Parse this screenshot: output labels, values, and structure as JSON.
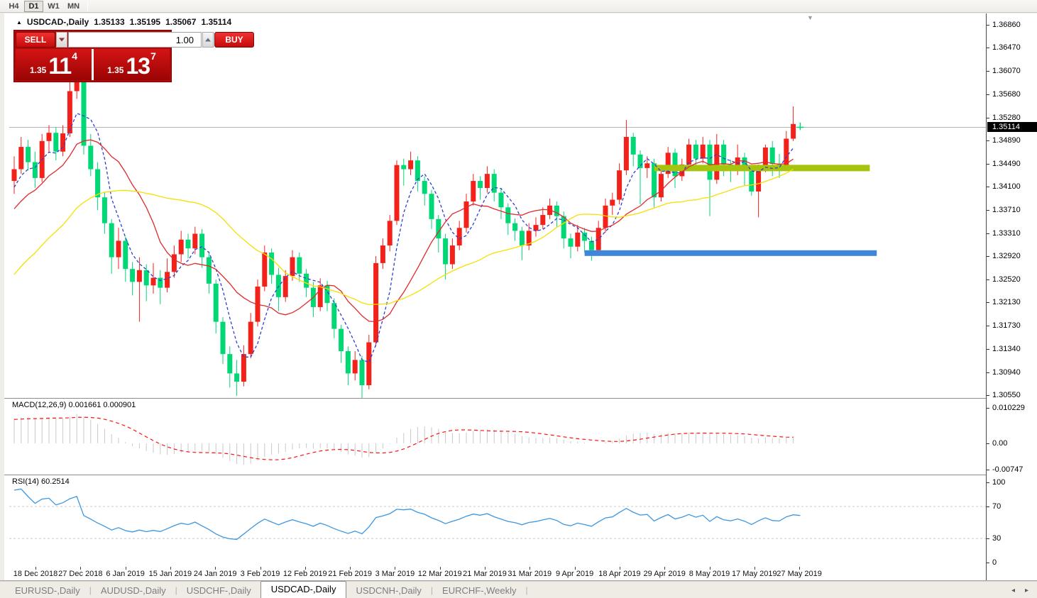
{
  "toolbar": {
    "timeframes": [
      "H4",
      "D1",
      "W1",
      "MN"
    ],
    "active": "D1"
  },
  "chart_title": {
    "symbol": "USDCAD-,Daily",
    "open": "1.35133",
    "high": "1.35195",
    "low": "1.35067",
    "close": "1.35114"
  },
  "trade_panel": {
    "sell_label": "SELL",
    "buy_label": "BUY",
    "volume": "1.00",
    "sell_price_small": "1.35",
    "sell_price_big": "11",
    "sell_price_sup": "4",
    "buy_price_small": "1.35",
    "buy_price_big": "13",
    "buy_price_sup": "7"
  },
  "labels": {
    "macd_full": "MACD(12,26,9) 0.001661 0.000901",
    "rsi_full": "RSI(14) 60.2514"
  },
  "tabs": {
    "items": [
      "EURUSD-,Daily",
      "AUDUSD-,Daily",
      "USDCHF-,Daily",
      "USDCAD-,Daily",
      "USDCNH-,Daily",
      "EURCHF-,Weekly"
    ],
    "active_index": 3
  },
  "colors": {
    "bull_candle": "#f2221b",
    "bear_candle": "#00d775",
    "ma_fast": "#2b3fd6",
    "ma_medium": "#e02a2a",
    "ma_slow": "#f5e000",
    "macd_histogram": "#c9c9c9",
    "macd_signal": "#ff1111",
    "rsi_line": "#3d97e0",
    "grid_dashed": "#c8c8c8",
    "ray_green": "#a6c40e",
    "ray_blue": "#3e86d9",
    "current_price_line": "#b4b4b4",
    "price_box_bg": "#000000"
  },
  "chart_data": {
    "type": "candlestick",
    "symbol": "USDCAD-",
    "timeframe": "Daily",
    "title": "USDCAD-,Daily",
    "ohlc_display": {
      "open": 1.35133,
      "high": 1.35195,
      "low": 1.35067,
      "close": 1.35114
    },
    "x_axis": {
      "labels": [
        "18 Dec 2018",
        "27 Dec 2018",
        "6 Jan 2019",
        "15 Jan 2019",
        "24 Jan 2019",
        "3 Feb 2019",
        "12 Feb 2019",
        "21 Feb 2019",
        "3 Mar 2019",
        "12 Mar 2019",
        "21 Mar 2019",
        "31 Mar 2019",
        "9 Apr 2019",
        "18 Apr 2019",
        "29 Apr 2019",
        "8 May 2019",
        "17 May 2019",
        "27 May 2019"
      ]
    },
    "y_axis": {
      "ticks": [
        "1.36860",
        "1.36470",
        "1.36070",
        "1.35680",
        "1.35280",
        "1.34890",
        "1.34490",
        "1.34100",
        "1.33710",
        "1.33310",
        "1.32920",
        "1.32520",
        "1.32130",
        "1.31730",
        "1.31340",
        "1.30940",
        "1.30550"
      ],
      "range": [
        1.3055,
        1.3686
      ],
      "current_price": 1.35114,
      "current_price_label": "1.35114"
    },
    "candles": [
      [
        1.342,
        1.3462,
        1.3398,
        1.344
      ],
      [
        1.344,
        1.3495,
        1.3432,
        1.3478
      ],
      [
        1.3478,
        1.349,
        1.3438,
        1.3452
      ],
      [
        1.3452,
        1.347,
        1.3408,
        1.3425
      ],
      [
        1.3425,
        1.35,
        1.3418,
        1.3488
      ],
      [
        1.3488,
        1.3515,
        1.347,
        1.3502
      ],
      [
        1.3502,
        1.3512,
        1.3455,
        1.347
      ],
      [
        1.347,
        1.3515,
        1.3462,
        1.3501
      ],
      [
        1.3501,
        1.3596,
        1.3495,
        1.3573
      ],
      [
        1.3573,
        1.3645,
        1.356,
        1.363
      ],
      [
        1.3625,
        1.3664,
        1.3465,
        1.348
      ],
      [
        1.348,
        1.35,
        1.3428,
        1.344
      ],
      [
        1.344,
        1.3452,
        1.337,
        1.3392
      ],
      [
        1.3392,
        1.34,
        1.333,
        1.3348
      ],
      [
        1.3348,
        1.3355,
        1.3262,
        1.329
      ],
      [
        1.329,
        1.334,
        1.327,
        1.3318
      ],
      [
        1.3318,
        1.3325,
        1.3248,
        1.327
      ],
      [
        1.327,
        1.3282,
        1.3225,
        1.3248
      ],
      [
        1.3248,
        1.329,
        1.318,
        1.3268
      ],
      [
        1.3268,
        1.3278,
        1.3215,
        1.3242
      ],
      [
        1.3242,
        1.328,
        1.3228,
        1.3255
      ],
      [
        1.3255,
        1.3268,
        1.321,
        1.3238
      ],
      [
        1.3238,
        1.3288,
        1.323,
        1.3265
      ],
      [
        1.3265,
        1.331,
        1.3255,
        1.3295
      ],
      [
        1.3295,
        1.3335,
        1.3282,
        1.332
      ],
      [
        1.332,
        1.333,
        1.3288,
        1.3305
      ],
      [
        1.3305,
        1.3342,
        1.3295,
        1.333
      ],
      [
        1.333,
        1.3338,
        1.3272,
        1.329
      ],
      [
        1.329,
        1.33,
        1.3228,
        1.3245
      ],
      [
        1.3245,
        1.3252,
        1.316,
        1.318
      ],
      [
        1.318,
        1.3188,
        1.3108,
        1.3125
      ],
      [
        1.3125,
        1.3138,
        1.3068,
        1.3092
      ],
      [
        1.3092,
        1.3115,
        1.3054,
        1.3078
      ],
      [
        1.3078,
        1.314,
        1.307,
        1.3125
      ],
      [
        1.3125,
        1.3195,
        1.3118,
        1.318
      ],
      [
        1.318,
        1.3252,
        1.3172,
        1.324
      ],
      [
        1.324,
        1.331,
        1.3232,
        1.3298
      ],
      [
        1.3298,
        1.3305,
        1.3245,
        1.326
      ],
      [
        1.326,
        1.3272,
        1.3198,
        1.3222
      ],
      [
        1.3222,
        1.3268,
        1.3214,
        1.3258
      ],
      [
        1.3258,
        1.3302,
        1.325,
        1.329
      ],
      [
        1.329,
        1.3298,
        1.3248,
        1.3262
      ],
      [
        1.3262,
        1.327,
        1.3222,
        1.3238
      ],
      [
        1.3238,
        1.3248,
        1.3188,
        1.3205
      ],
      [
        1.3205,
        1.3254,
        1.3198,
        1.3242
      ],
      [
        1.3242,
        1.325,
        1.3198,
        1.3212
      ],
      [
        1.3212,
        1.322,
        1.3152,
        1.3168
      ],
      [
        1.3168,
        1.3175,
        1.311,
        1.313
      ],
      [
        1.313,
        1.3138,
        1.3072,
        1.3092
      ],
      [
        1.3092,
        1.313,
        1.308,
        1.3115
      ],
      [
        1.3115,
        1.3122,
        1.305,
        1.3072
      ],
      [
        1.3072,
        1.3158,
        1.3065,
        1.3145
      ],
      [
        1.3145,
        1.3292,
        1.3138,
        1.328
      ],
      [
        1.328,
        1.3322,
        1.327,
        1.331
      ],
      [
        1.331,
        1.3362,
        1.33,
        1.3352
      ],
      [
        1.3352,
        1.3455,
        1.3345,
        1.3447
      ],
      [
        1.3447,
        1.3458,
        1.3412,
        1.344
      ],
      [
        1.344,
        1.347,
        1.343,
        1.3455
      ],
      [
        1.3455,
        1.3462,
        1.3402,
        1.342
      ],
      [
        1.342,
        1.3428,
        1.3378,
        1.3398
      ],
      [
        1.3398,
        1.3405,
        1.3338,
        1.3355
      ],
      [
        1.3355,
        1.3362,
        1.3298,
        1.3322
      ],
      [
        1.3322,
        1.333,
        1.3252,
        1.3278
      ],
      [
        1.3278,
        1.3322,
        1.327,
        1.331
      ],
      [
        1.331,
        1.3352,
        1.3302,
        1.334
      ],
      [
        1.334,
        1.3398,
        1.3332,
        1.3385
      ],
      [
        1.3385,
        1.3432,
        1.3378,
        1.342
      ],
      [
        1.342,
        1.3428,
        1.3388,
        1.3408
      ],
      [
        1.3408,
        1.3445,
        1.34,
        1.3432
      ],
      [
        1.3432,
        1.344,
        1.3385,
        1.34
      ],
      [
        1.34,
        1.3408,
        1.3355,
        1.3375
      ],
      [
        1.3375,
        1.3382,
        1.3328,
        1.3348
      ],
      [
        1.3348,
        1.3356,
        1.3318,
        1.3335
      ],
      [
        1.3335,
        1.3342,
        1.3285,
        1.331
      ],
      [
        1.331,
        1.3348,
        1.3302,
        1.3335
      ],
      [
        1.3335,
        1.3358,
        1.3325,
        1.3345
      ],
      [
        1.3345,
        1.3375,
        1.3338,
        1.3362
      ],
      [
        1.3362,
        1.339,
        1.3355,
        1.3378
      ],
      [
        1.3378,
        1.3385,
        1.3342,
        1.336
      ],
      [
        1.336,
        1.3368,
        1.3305,
        1.3322
      ],
      [
        1.3322,
        1.333,
        1.3288,
        1.3308
      ],
      [
        1.3308,
        1.3345,
        1.33,
        1.3332
      ],
      [
        1.3332,
        1.334,
        1.3298,
        1.3318
      ],
      [
        1.3318,
        1.3325,
        1.3284,
        1.3302
      ],
      [
        1.3302,
        1.3352,
        1.3295,
        1.334
      ],
      [
        1.334,
        1.339,
        1.3332,
        1.3378
      ],
      [
        1.3378,
        1.34,
        1.3362,
        1.3388
      ],
      [
        1.3388,
        1.345,
        1.338,
        1.3438
      ],
      [
        1.3438,
        1.3524,
        1.343,
        1.3495
      ],
      [
        1.3495,
        1.3502,
        1.3445,
        1.3465
      ],
      [
        1.3465,
        1.3472,
        1.338,
        1.3442
      ],
      [
        1.3442,
        1.3462,
        1.3425,
        1.345
      ],
      [
        1.345,
        1.3458,
        1.3375,
        1.3392
      ],
      [
        1.3392,
        1.3442,
        1.3385,
        1.3432
      ],
      [
        1.3432,
        1.3478,
        1.3425,
        1.3468
      ],
      [
        1.3468,
        1.3475,
        1.3408,
        1.3428
      ],
      [
        1.3428,
        1.3458,
        1.342,
        1.3448
      ],
      [
        1.3448,
        1.3492,
        1.344,
        1.3482
      ],
      [
        1.3482,
        1.349,
        1.3438,
        1.3458
      ],
      [
        1.3458,
        1.3495,
        1.345,
        1.3482
      ],
      [
        1.3482,
        1.349,
        1.336,
        1.3422
      ],
      [
        1.3422,
        1.35,
        1.3415,
        1.3482
      ],
      [
        1.3482,
        1.349,
        1.3428,
        1.3448
      ],
      [
        1.3448,
        1.3456,
        1.3418,
        1.3438
      ],
      [
        1.3438,
        1.3482,
        1.343,
        1.346
      ],
      [
        1.346,
        1.3468,
        1.3412,
        1.3437
      ],
      [
        1.3437,
        1.3444,
        1.3395,
        1.3402
      ],
      [
        1.3402,
        1.3448,
        1.3358,
        1.3441
      ],
      [
        1.3441,
        1.3482,
        1.3435,
        1.3477
      ],
      [
        1.3477,
        1.3488,
        1.3428,
        1.3449
      ],
      [
        1.3449,
        1.3466,
        1.3425,
        1.3445
      ],
      [
        1.3445,
        1.3505,
        1.344,
        1.3492
      ],
      [
        1.3492,
        1.3547,
        1.3488,
        1.3517
      ]
    ],
    "forming_candle": [
      1.35133,
      1.35195,
      1.35067,
      1.35114
    ],
    "indicator_warmup_closes": [
      1.305,
      1.3068,
      1.3085,
      1.3105,
      1.3098,
      1.3122,
      1.3148,
      1.316,
      1.3155,
      1.3178,
      1.3198,
      1.3215,
      1.3208,
      1.3232,
      1.3255,
      1.327,
      1.3262,
      1.3288,
      1.3305,
      1.3322,
      1.3315,
      1.3338,
      1.3352,
      1.3345,
      1.3368,
      1.3385,
      1.3378,
      1.3398,
      1.341,
      1.342
    ],
    "overlays": {
      "moving_averages": [
        {
          "name": "ma-fast-blue",
          "period": 5,
          "color": "#2b3fd6",
          "dashed": true
        },
        {
          "name": "ma-medium-red",
          "period": 12,
          "color": "#e02a2a",
          "dashed": false
        },
        {
          "name": "ma-slow-yellow",
          "period": 30,
          "color": "#f5e000",
          "dashed": false
        }
      ],
      "horizontal_rays": [
        {
          "name": "resistance-ray-green",
          "color": "#a6c40e",
          "price": 1.3442,
          "from_bar": 92,
          "to_bar": 123,
          "thickness": 9
        },
        {
          "name": "support-ray-blue",
          "color": "#3e86d9",
          "price": 1.3297,
          "from_bar": 82,
          "to_bar": 124,
          "thickness": 8
        }
      ]
    },
    "macd_pane": {
      "label": "MACD(12,26,9)",
      "params": [
        12,
        26,
        9
      ],
      "current_macd": "0.001661",
      "current_signal": "0.000901",
      "y_ticks": [
        {
          "label": "0.010229",
          "value": 0.010229
        },
        {
          "label": "0.00",
          "value": 0.0
        },
        {
          "label": "-0.00747",
          "value": -0.00747
        }
      ]
    },
    "rsi_pane": {
      "label": "RSI(14)",
      "period": 14,
      "current": "60.2514",
      "levels": [
        70,
        30
      ],
      "y_ticks": [
        {
          "label": "100",
          "value": 100
        },
        {
          "label": "70",
          "value": 70
        },
        {
          "label": "30",
          "value": 30
        },
        {
          "label": "0",
          "value": 0
        }
      ]
    }
  }
}
